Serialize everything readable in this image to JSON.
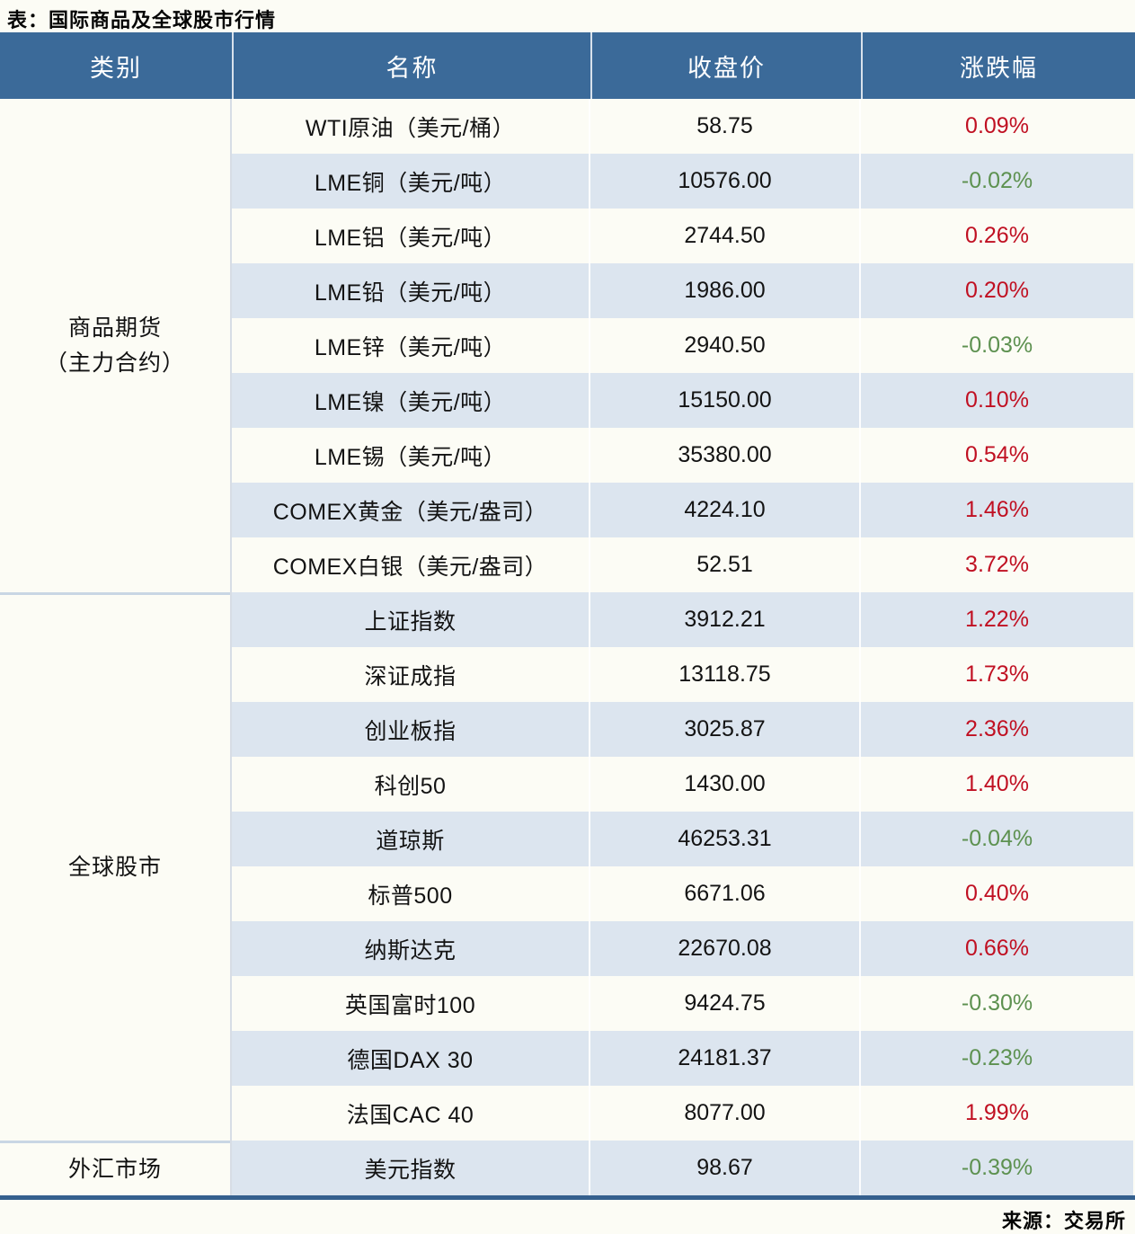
{
  "title": "表：国际商品及全球股市行情",
  "source": "来源：交易所",
  "colors": {
    "header_bg": "#3b6a99",
    "stripe": "#dce5ef",
    "up_red": "#c01022",
    "down_green": "#5d9150",
    "bottom_rule": "#35608e"
  },
  "chart_data": {
    "type": "table",
    "title": "表：国际商品及全球股市行情",
    "source": "来源：交易所",
    "columns": [
      "类别",
      "名称",
      "收盘价",
      "涨跌幅"
    ],
    "groups": [
      {
        "label_lines": [
          "商品期货",
          "（主力合约）"
        ],
        "row_count": 9
      },
      {
        "label_lines": [
          "全球股市"
        ],
        "row_count": 10
      },
      {
        "label_lines": [
          "外汇市场"
        ],
        "row_count": 1
      }
    ],
    "rows": [
      {
        "category": "商品期货（主力合约）",
        "name": "WTI原油（美元/桶）",
        "close": "58.75",
        "change": "0.09%",
        "trend": "up"
      },
      {
        "category": "商品期货（主力合约）",
        "name": "LME铜（美元/吨）",
        "close": "10576.00",
        "change": "-0.02%",
        "trend": "down"
      },
      {
        "category": "商品期货（主力合约）",
        "name": "LME铝（美元/吨）",
        "close": "2744.50",
        "change": "0.26%",
        "trend": "up"
      },
      {
        "category": "商品期货（主力合约）",
        "name": "LME铅（美元/吨）",
        "close": "1986.00",
        "change": "0.20%",
        "trend": "up"
      },
      {
        "category": "商品期货（主力合约）",
        "name": "LME锌（美元/吨）",
        "close": "2940.50",
        "change": "-0.03%",
        "trend": "down"
      },
      {
        "category": "商品期货（主力合约）",
        "name": "LME镍（美元/吨）",
        "close": "15150.00",
        "change": "0.10%",
        "trend": "up"
      },
      {
        "category": "商品期货（主力合约）",
        "name": "LME锡（美元/吨）",
        "close": "35380.00",
        "change": "0.54%",
        "trend": "up"
      },
      {
        "category": "商品期货（主力合约）",
        "name": "COMEX黄金（美元/盎司）",
        "close": "4224.10",
        "change": "1.46%",
        "trend": "up"
      },
      {
        "category": "商品期货（主力合约）",
        "name": "COMEX白银（美元/盎司）",
        "close": "52.51",
        "change": "3.72%",
        "trend": "up"
      },
      {
        "category": "全球股市",
        "name": "上证指数",
        "close": "3912.21",
        "change": "1.22%",
        "trend": "up"
      },
      {
        "category": "全球股市",
        "name": "深证成指",
        "close": "13118.75",
        "change": "1.73%",
        "trend": "up"
      },
      {
        "category": "全球股市",
        "name": "创业板指",
        "close": "3025.87",
        "change": "2.36%",
        "trend": "up"
      },
      {
        "category": "全球股市",
        "name": "科创50",
        "close": "1430.00",
        "change": "1.40%",
        "trend": "up"
      },
      {
        "category": "全球股市",
        "name": "道琼斯",
        "close": "46253.31",
        "change": "-0.04%",
        "trend": "down"
      },
      {
        "category": "全球股市",
        "name": "标普500",
        "close": "6671.06",
        "change": "0.40%",
        "trend": "up"
      },
      {
        "category": "全球股市",
        "name": "纳斯达克",
        "close": "22670.08",
        "change": "0.66%",
        "trend": "up"
      },
      {
        "category": "全球股市",
        "name": "英国富时100",
        "close": "9424.75",
        "change": "-0.30%",
        "trend": "down"
      },
      {
        "category": "全球股市",
        "name": "德国DAX 30",
        "close": "24181.37",
        "change": "-0.23%",
        "trend": "down"
      },
      {
        "category": "全球股市",
        "name": "法国CAC 40",
        "close": "8077.00",
        "change": "1.99%",
        "trend": "up"
      },
      {
        "category": "外汇市场",
        "name": "美元指数",
        "close": "98.67",
        "change": "-0.39%",
        "trend": "down"
      }
    ]
  }
}
